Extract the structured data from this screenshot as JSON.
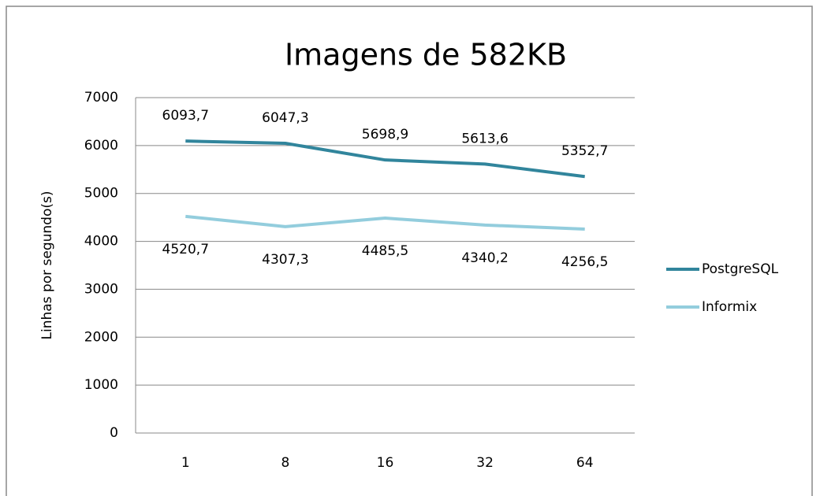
{
  "chart_data": {
    "type": "line",
    "title": "Imagens de 582KB",
    "y_label": "Linhas por segundo(s)",
    "categories": [
      "1",
      "8",
      "16",
      "32",
      "64"
    ],
    "series": [
      {
        "name": "PostgreSQL",
        "color": "#31859c",
        "values": [
          6093.7,
          6047.3,
          5698.9,
          5613.6,
          5352.7
        ],
        "value_labels": [
          "6093,7",
          "6047,3",
          "5698,9",
          "5613,6",
          "5352,7"
        ]
      },
      {
        "name": "Informix",
        "color": "#93cddd",
        "values": [
          4520.7,
          4307.3,
          4485.5,
          4340.2,
          4256.5
        ],
        "value_labels": [
          "4520,7",
          "4307,3",
          "4485,5",
          "4340,2",
          "4256,5"
        ]
      }
    ],
    "ylim": [
      0,
      7000
    ],
    "yticks": [
      0,
      1000,
      2000,
      3000,
      4000,
      5000,
      6000,
      7000
    ],
    "grid": true,
    "legend": "right"
  }
}
